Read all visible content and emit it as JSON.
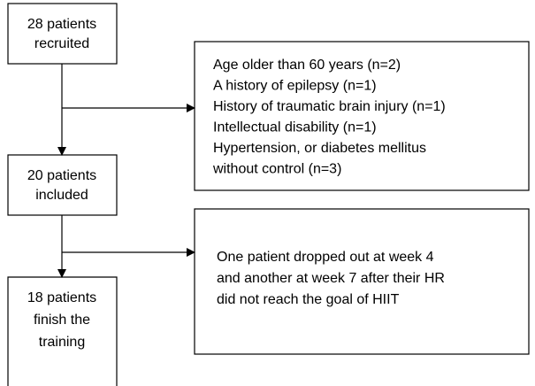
{
  "nodes": [
    {
      "lines": [
        "28 patients",
        "recruited"
      ]
    },
    {
      "lines": [
        "Age older than 60 years (n=2)",
        "A history of epilepsy (n=1)",
        "History of traumatic brain injury (n=1)",
        "Intellectual disability (n=1)",
        "Hypertension, or diabetes mellitus",
        "without control (n=3)"
      ]
    },
    {
      "lines": [
        "20 patients",
        "included"
      ]
    },
    {
      "lines": [
        "One patient dropped out at week 4",
        "and another at week 7 after their HR",
        "did not reach the goal of HIIT"
      ]
    },
    {
      "lines": [
        "18 patients",
        "finish the",
        "training"
      ]
    }
  ]
}
